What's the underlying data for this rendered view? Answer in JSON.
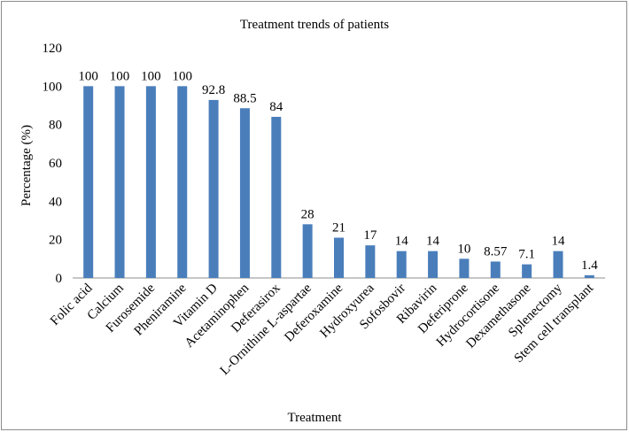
{
  "chart_data": {
    "type": "bar",
    "title": "Treatment trends of patients",
    "xlabel": "Treatment",
    "ylabel": "Percentage (%)",
    "ylim": [
      0,
      120
    ],
    "yticks": [
      0,
      20,
      40,
      60,
      80,
      100,
      120
    ],
    "grid": false,
    "legend": "none",
    "bar_color": "#4a7ebb",
    "categories": [
      "Folic acid",
      "Calcium",
      "Furosemide",
      "Pheniramine",
      "Vitamin D",
      "Acetaminophen",
      "Deferasirox",
      "L-Ornithine L-aspartae",
      "Deferoxamine",
      "Hydroxyurea",
      "Sofosbovir",
      "Ribavirin",
      "Deferiprone",
      "Hydrocortisone",
      "Dexamethasone",
      "Splenectomy",
      "Stem cell transplant"
    ],
    "values": [
      100,
      100,
      100,
      100,
      92.8,
      88.5,
      84,
      28,
      21,
      17,
      14,
      14,
      10,
      8.57,
      7.1,
      14,
      1.4
    ],
    "data_labels": [
      "100",
      "100",
      "100",
      "100",
      "92.8",
      "88.5",
      "84",
      "28",
      "21",
      "17",
      "14",
      "14",
      "10",
      "8.57",
      "7.1",
      "14",
      "1.4"
    ]
  }
}
